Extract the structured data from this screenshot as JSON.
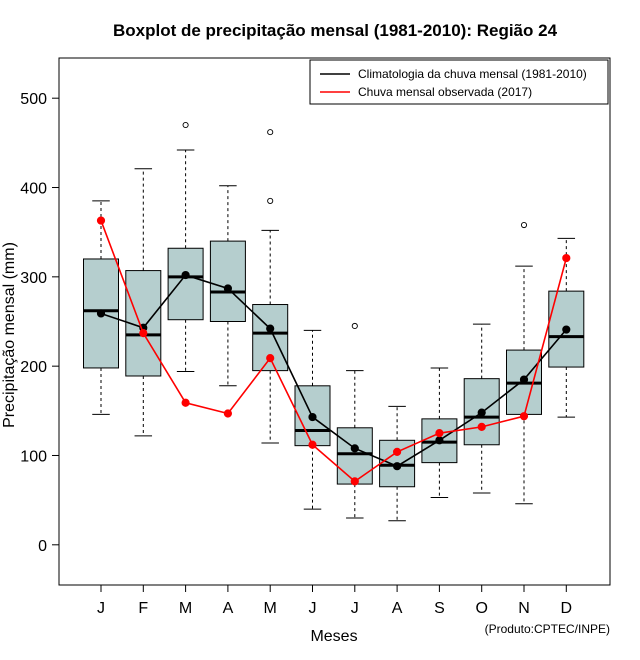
{
  "chart_data": {
    "type": "boxplot",
    "title": "Boxplot de precipitação mensal (1981-2010): Região 24",
    "xlabel": "Meses",
    "ylabel": "Precipitação mensal (mm)",
    "ylim": [
      -45,
      545
    ],
    "yticks": [
      0,
      100,
      200,
      300,
      400,
      500
    ],
    "categories": [
      "J",
      "F",
      "M",
      "A",
      "M",
      "J",
      "J",
      "A",
      "S",
      "O",
      "N",
      "D"
    ],
    "boxes": [
      {
        "min": 146,
        "q1": 198,
        "median": 262,
        "q3": 320,
        "max": 385,
        "outliers": []
      },
      {
        "min": 122,
        "q1": 189,
        "median": 235,
        "q3": 307,
        "max": 421,
        "outliers": []
      },
      {
        "min": 194,
        "q1": 252,
        "median": 300,
        "q3": 332,
        "max": 442,
        "outliers": [
          470
        ]
      },
      {
        "min": 178,
        "q1": 250,
        "median": 283,
        "q3": 340,
        "max": 402,
        "outliers": []
      },
      {
        "min": 114,
        "q1": 195,
        "median": 237,
        "q3": 269,
        "max": 352,
        "outliers": [
          385,
          462
        ]
      },
      {
        "min": 40,
        "q1": 111,
        "median": 128,
        "q3": 178,
        "max": 240,
        "outliers": []
      },
      {
        "min": 30,
        "q1": 68,
        "median": 102,
        "q3": 131,
        "max": 195,
        "outliers": [
          245
        ]
      },
      {
        "min": 27,
        "q1": 65,
        "median": 89,
        "q3": 117,
        "max": 155,
        "outliers": []
      },
      {
        "min": 53,
        "q1": 92,
        "median": 115,
        "q3": 141,
        "max": 198,
        "outliers": []
      },
      {
        "min": 58,
        "q1": 112,
        "median": 143,
        "q3": 186,
        "max": 247,
        "outliers": []
      },
      {
        "min": 46,
        "q1": 146,
        "median": 181,
        "q3": 218,
        "max": 312,
        "outliers": [
          358
        ]
      },
      {
        "min": 143,
        "q1": 199,
        "median": 233,
        "q3": 284,
        "max": 343,
        "outliers": []
      }
    ],
    "series": [
      {
        "name": "Climatologia da chuva mensal (1981-2010)",
        "color": "#000000",
        "values": [
          259,
          243,
          302,
          287,
          242,
          143,
          108,
          88,
          117,
          148,
          185,
          241
        ]
      },
      {
        "name": "Chuva mensal observada (2017)",
        "color": "#ff0000",
        "values": [
          363,
          237,
          159,
          147,
          209,
          112,
          71,
          104,
          125,
          132,
          144,
          321
        ]
      }
    ],
    "box_fill": "#b5cece",
    "legend_position": "top-right",
    "credit": "(Produto:CPTEC/INPE)"
  }
}
